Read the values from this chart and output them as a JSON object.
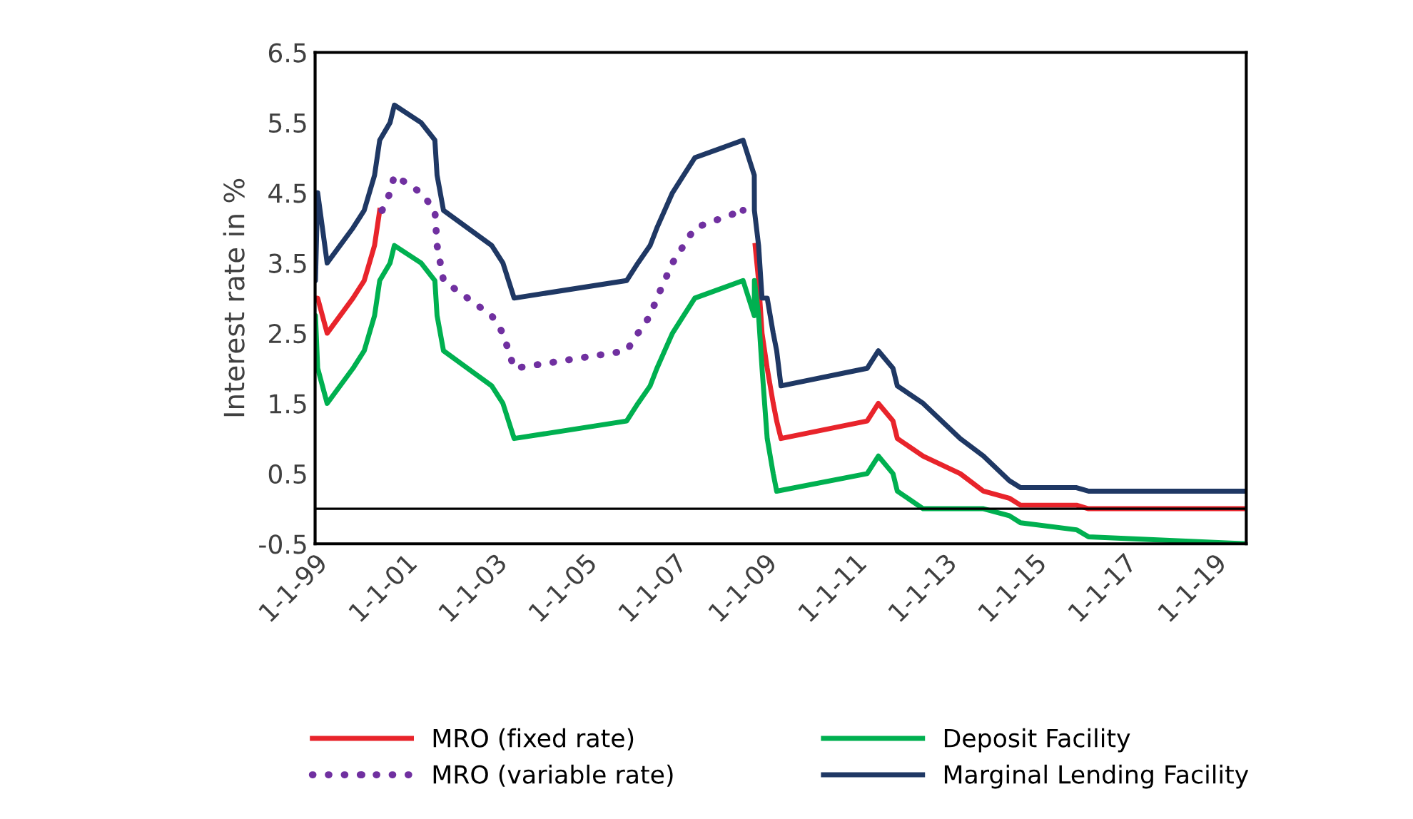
{
  "chart_data": {
    "type": "line",
    "ylabel": "Interest rate in %",
    "xlim": [
      "1999-01-01",
      "2019-09-18"
    ],
    "xticks": [
      {
        "value": "1999-01-01",
        "label": "1-1-99"
      },
      {
        "value": "2001-01-01",
        "label": "1-1-01"
      },
      {
        "value": "2003-01-01",
        "label": "1-1-03"
      },
      {
        "value": "2005-01-01",
        "label": "1-1-05"
      },
      {
        "value": "2007-01-01",
        "label": "1-1-07"
      },
      {
        "value": "2009-01-01",
        "label": "1-1-09"
      },
      {
        "value": "2011-01-01",
        "label": "1-1-11"
      },
      {
        "value": "2013-01-01",
        "label": "1-1-13"
      },
      {
        "value": "2015-01-01",
        "label": "1-1-15"
      },
      {
        "value": "2017-01-01",
        "label": "1-1-17"
      },
      {
        "value": "2019-01-01",
        "label": "1-1-19"
      }
    ],
    "ylim": [
      -0.5,
      6.5
    ],
    "yticks": [
      -0.5,
      0.5,
      1.5,
      2.5,
      3.5,
      4.5,
      5.5,
      6.5
    ],
    "ref_lines": [
      {
        "axis": "y",
        "value": 0,
        "color": "#000000"
      }
    ],
    "grid": false,
    "legend": "bottom",
    "marker": "none",
    "series": [
      {
        "name": "MRO (fixed rate)",
        "color": "#e8242b",
        "line_style": "solid",
        "x": [
          "1999-01-01",
          "1999-01-22",
          "1999-04-09",
          "1999-11-05",
          "2000-02-04",
          "2000-03-17",
          "2000-04-28",
          "2000-06-09",
          "2000-06-27",
          "2008-10-15",
          "2008-11-12",
          "2008-12-10",
          "2009-01-21",
          "2009-03-11",
          "2009-04-08",
          "2009-05-13",
          "2011-04-13",
          "2011-07-13",
          "2011-11-09",
          "2011-12-14",
          "2012-07-11",
          "2013-05-08",
          "2013-11-13",
          "2014-06-11",
          "2014-09-10",
          "2015-12-09",
          "2016-03-16",
          "2019-09-18"
        ],
        "values": [
          3.0,
          3.0,
          2.5,
          3.0,
          3.25,
          3.5,
          3.75,
          4.25,
          null,
          3.75,
          3.25,
          2.5,
          2.0,
          1.5,
          1.25,
          1.0,
          1.25,
          1.5,
          1.25,
          1.0,
          0.75,
          0.5,
          0.25,
          0.15,
          0.05,
          0.05,
          0.0,
          0.0
        ]
      },
      {
        "name": "MRO (variable rate)",
        "color": "#7030a0",
        "line_style": "dotted",
        "x": [
          "2000-06-28",
          "2000-09-01",
          "2000-10-06",
          "2001-05-11",
          "2001-08-31",
          "2001-09-18",
          "2001-11-09",
          "2002-12-06",
          "2003-03-07",
          "2003-06-06",
          "2005-12-06",
          "2006-03-08",
          "2006-06-15",
          "2006-08-09",
          "2006-10-11",
          "2006-12-13",
          "2007-03-14",
          "2007-06-13",
          "2008-07-09"
        ],
        "values": [
          4.25,
          4.5,
          4.75,
          4.5,
          4.25,
          3.75,
          3.25,
          2.75,
          2.5,
          2.0,
          2.25,
          2.5,
          2.75,
          3.0,
          3.25,
          3.5,
          3.75,
          4.0,
          4.25
        ]
      },
      {
        "name": "Deposit Facility",
        "color": "#00b050",
        "line_style": "solid",
        "x": [
          "1999-01-01",
          "1999-01-04",
          "1999-01-22",
          "1999-04-09",
          "1999-11-05",
          "2000-02-04",
          "2000-03-17",
          "2000-04-28",
          "2000-06-09",
          "2000-09-01",
          "2000-10-06",
          "2001-05-11",
          "2001-08-31",
          "2001-09-18",
          "2001-11-09",
          "2002-12-06",
          "2003-03-07",
          "2003-06-06",
          "2005-12-06",
          "2006-03-08",
          "2006-06-15",
          "2006-08-09",
          "2006-10-11",
          "2006-12-13",
          "2007-03-14",
          "2007-06-13",
          "2008-07-09",
          "2008-10-08",
          "2008-10-09",
          "2008-11-12",
          "2008-12-10",
          "2009-01-21",
          "2009-03-11",
          "2009-04-08",
          "2011-04-13",
          "2011-07-13",
          "2011-11-09",
          "2011-12-14",
          "2012-07-11",
          "2013-05-08",
          "2013-11-13",
          "2014-06-11",
          "2014-09-10",
          "2015-12-09",
          "2016-03-16",
          "2019-09-18"
        ],
        "values": [
          2.0,
          2.75,
          2.0,
          1.5,
          2.0,
          2.25,
          2.5,
          2.75,
          3.25,
          3.5,
          3.75,
          3.5,
          3.25,
          2.75,
          2.25,
          1.75,
          1.5,
          1.0,
          1.25,
          1.5,
          1.75,
          2.0,
          2.25,
          2.5,
          2.75,
          3.0,
          3.25,
          2.75,
          3.25,
          2.75,
          2.0,
          1.0,
          0.5,
          0.25,
          0.5,
          0.75,
          0.5,
          0.25,
          0.0,
          0.0,
          0.0,
          -0.1,
          -0.2,
          -0.3,
          -0.4,
          -0.5
        ]
      },
      {
        "name": "Marginal Lending Facility",
        "color": "#1f3864",
        "line_style": "solid",
        "x": [
          "1999-01-01",
          "1999-01-04",
          "1999-01-22",
          "1999-04-09",
          "1999-11-05",
          "2000-02-04",
          "2000-03-17",
          "2000-04-28",
          "2000-06-09",
          "2000-09-01",
          "2000-10-06",
          "2001-05-11",
          "2001-08-31",
          "2001-09-18",
          "2001-11-09",
          "2002-12-06",
          "2003-03-07",
          "2003-06-06",
          "2005-12-06",
          "2006-03-08",
          "2006-06-15",
          "2006-08-09",
          "2006-10-11",
          "2006-12-13",
          "2007-03-14",
          "2007-06-13",
          "2008-07-09",
          "2008-10-08",
          "2008-10-09",
          "2008-11-12",
          "2008-12-10",
          "2009-01-21",
          "2009-03-11",
          "2009-04-08",
          "2009-05-13",
          "2011-04-13",
          "2011-07-13",
          "2011-11-09",
          "2011-12-14",
          "2012-07-11",
          "2013-05-08",
          "2013-11-13",
          "2014-06-11",
          "2014-09-10",
          "2015-12-09",
          "2016-03-16",
          "2019-09-18"
        ],
        "values": [
          4.5,
          3.25,
          4.5,
          3.5,
          4.0,
          4.25,
          4.5,
          4.75,
          5.25,
          5.5,
          5.75,
          5.5,
          5.25,
          4.75,
          4.25,
          3.75,
          3.5,
          3.0,
          3.25,
          3.5,
          3.75,
          4.0,
          4.25,
          4.5,
          4.75,
          5.0,
          5.25,
          4.75,
          4.25,
          3.75,
          3.0,
          3.0,
          2.5,
          2.25,
          1.75,
          2.0,
          2.25,
          2.0,
          1.75,
          1.5,
          1.0,
          0.75,
          0.4,
          0.3,
          0.3,
          0.25,
          0.25
        ]
      }
    ]
  }
}
